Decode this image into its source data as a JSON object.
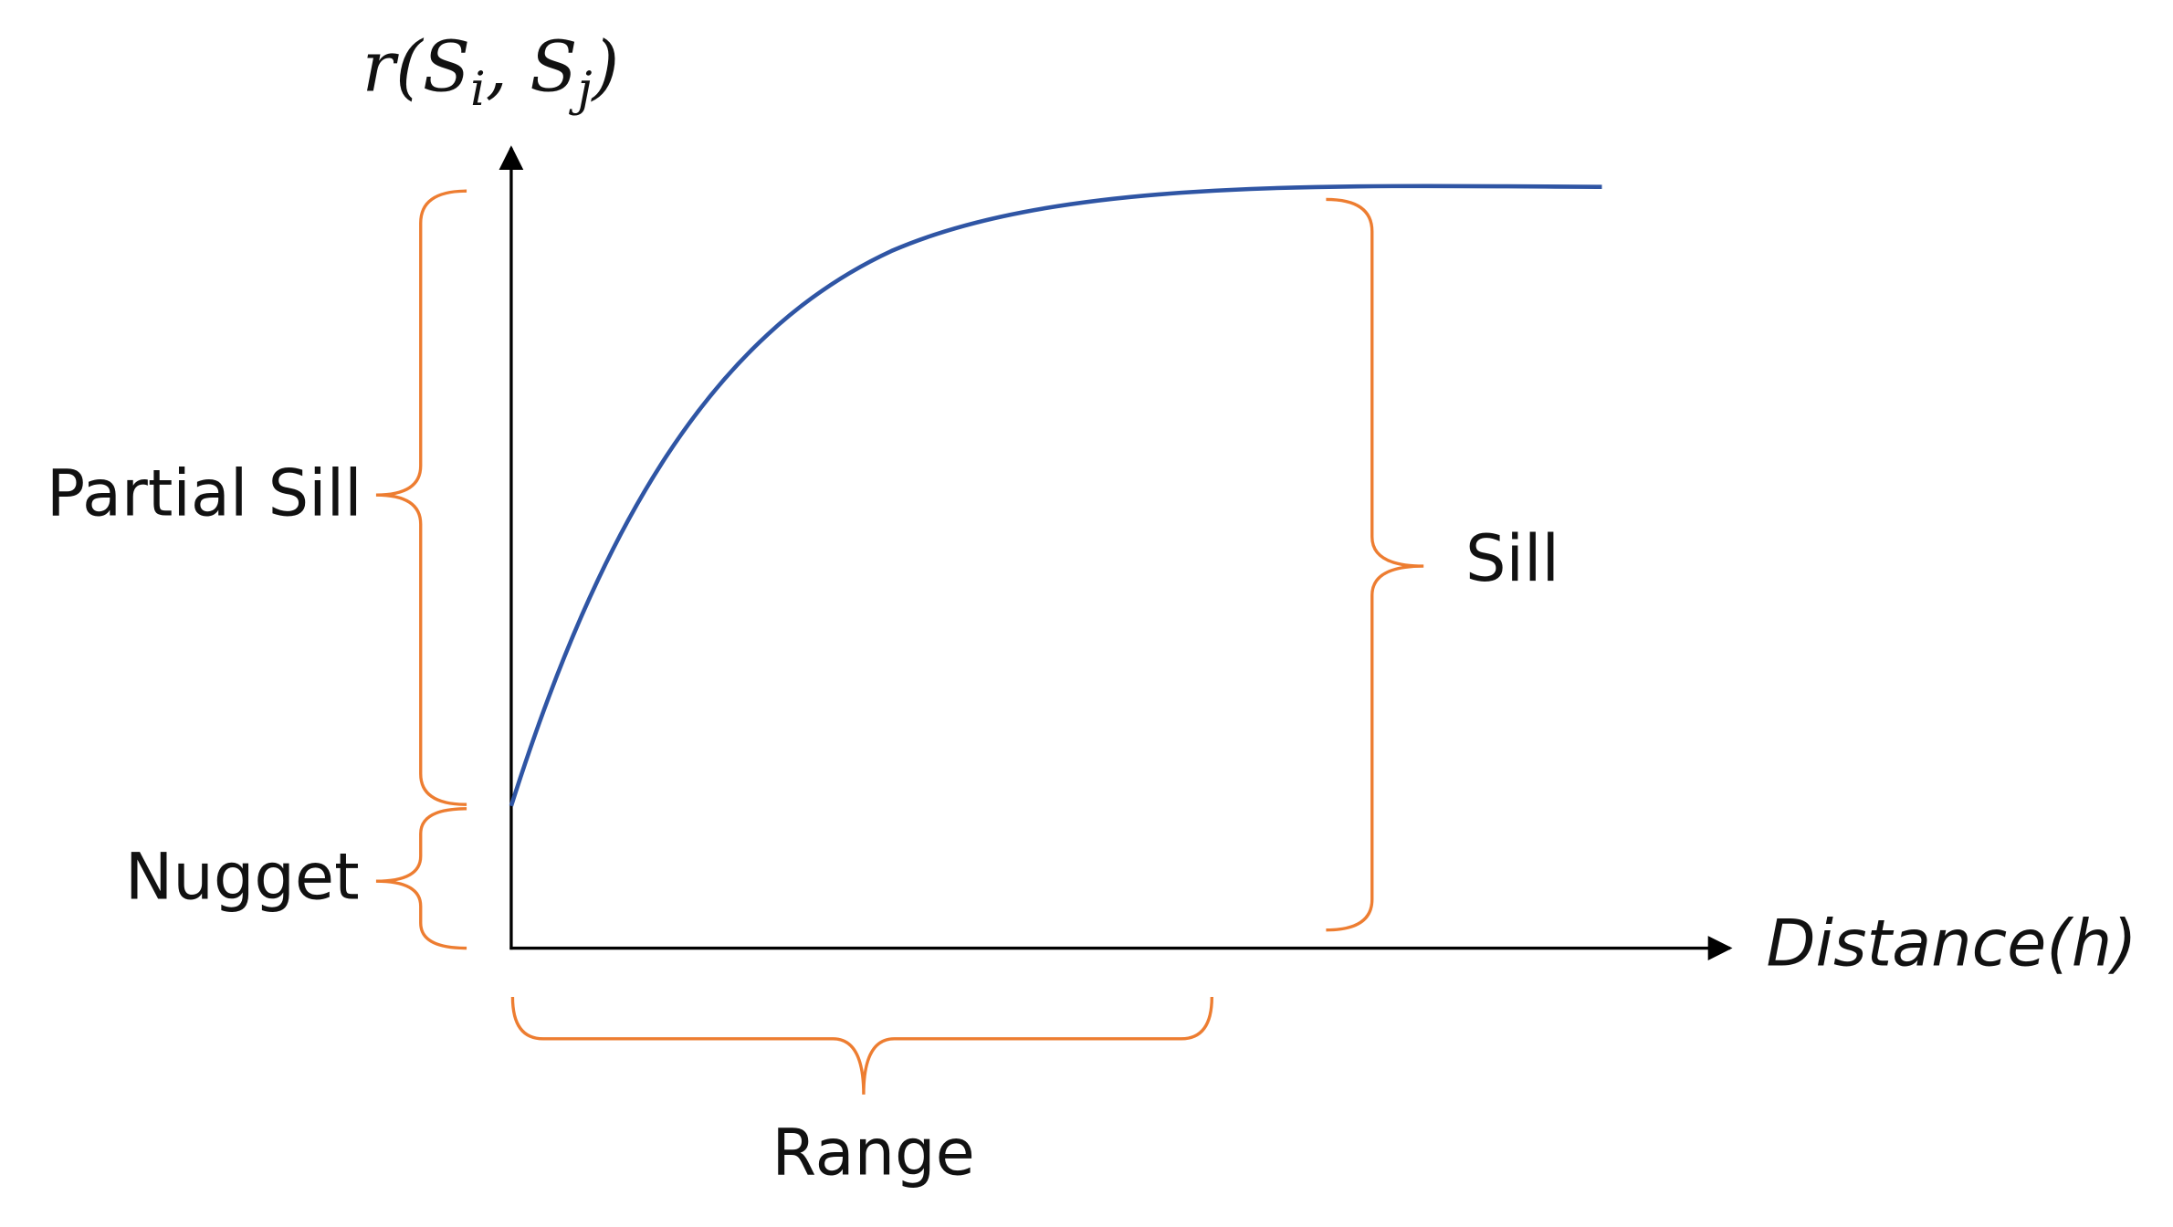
{
  "y_axis": {
    "label_parts": [
      "r(S",
      "i",
      ", S",
      "j",
      ")"
    ]
  },
  "x_axis": {
    "label": "Distance(h)"
  },
  "annotations": {
    "partial_sill": "Partial Sill",
    "nugget": "Nugget",
    "sill": "Sill",
    "range": "Range"
  }
}
